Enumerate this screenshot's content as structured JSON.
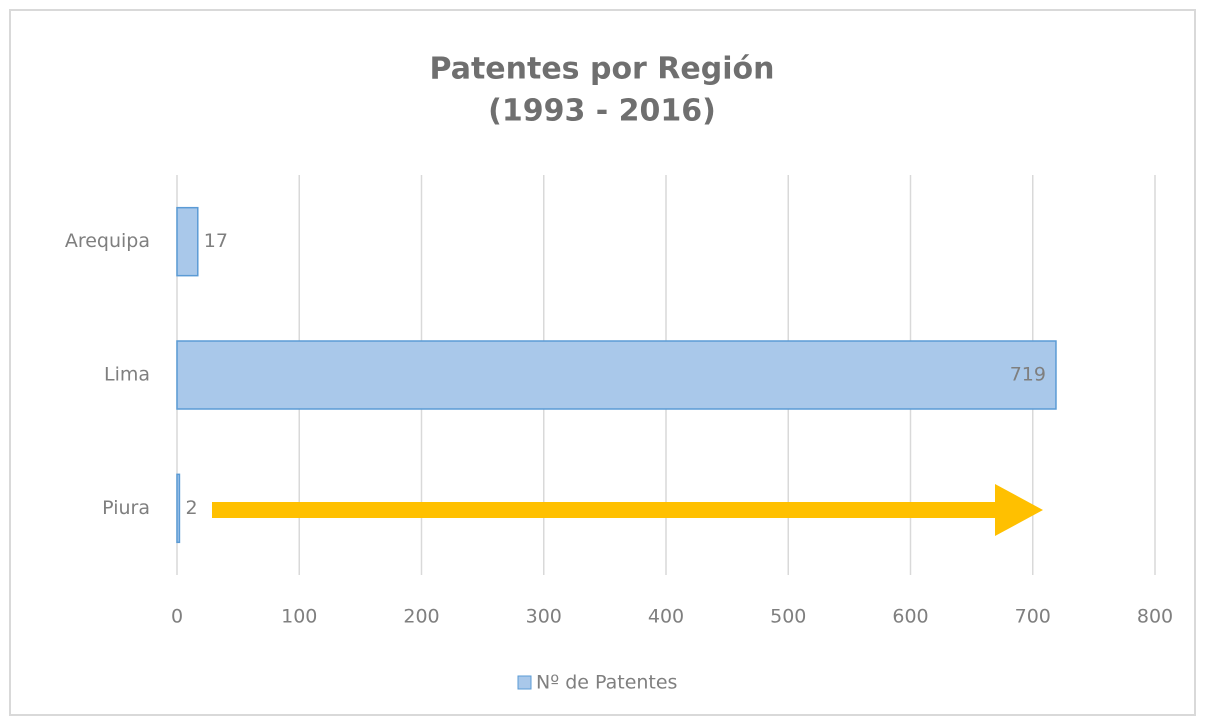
{
  "chart_data": {
    "type": "bar",
    "orientation": "horizontal",
    "title": "Patentes por Región",
    "subtitle": "(1993 - 2016)",
    "categories": [
      "Arequipa",
      "Lima",
      "Piura"
    ],
    "series": [
      {
        "name": "Nº de Patentes",
        "color": "#a9c8ea",
        "values": [
          17,
          719,
          2
        ]
      }
    ],
    "xlim": [
      0,
      800
    ],
    "xticks": [
      0,
      100,
      200,
      300,
      400,
      500,
      600,
      700,
      800
    ],
    "grid": true,
    "legend": "bottom"
  }
}
